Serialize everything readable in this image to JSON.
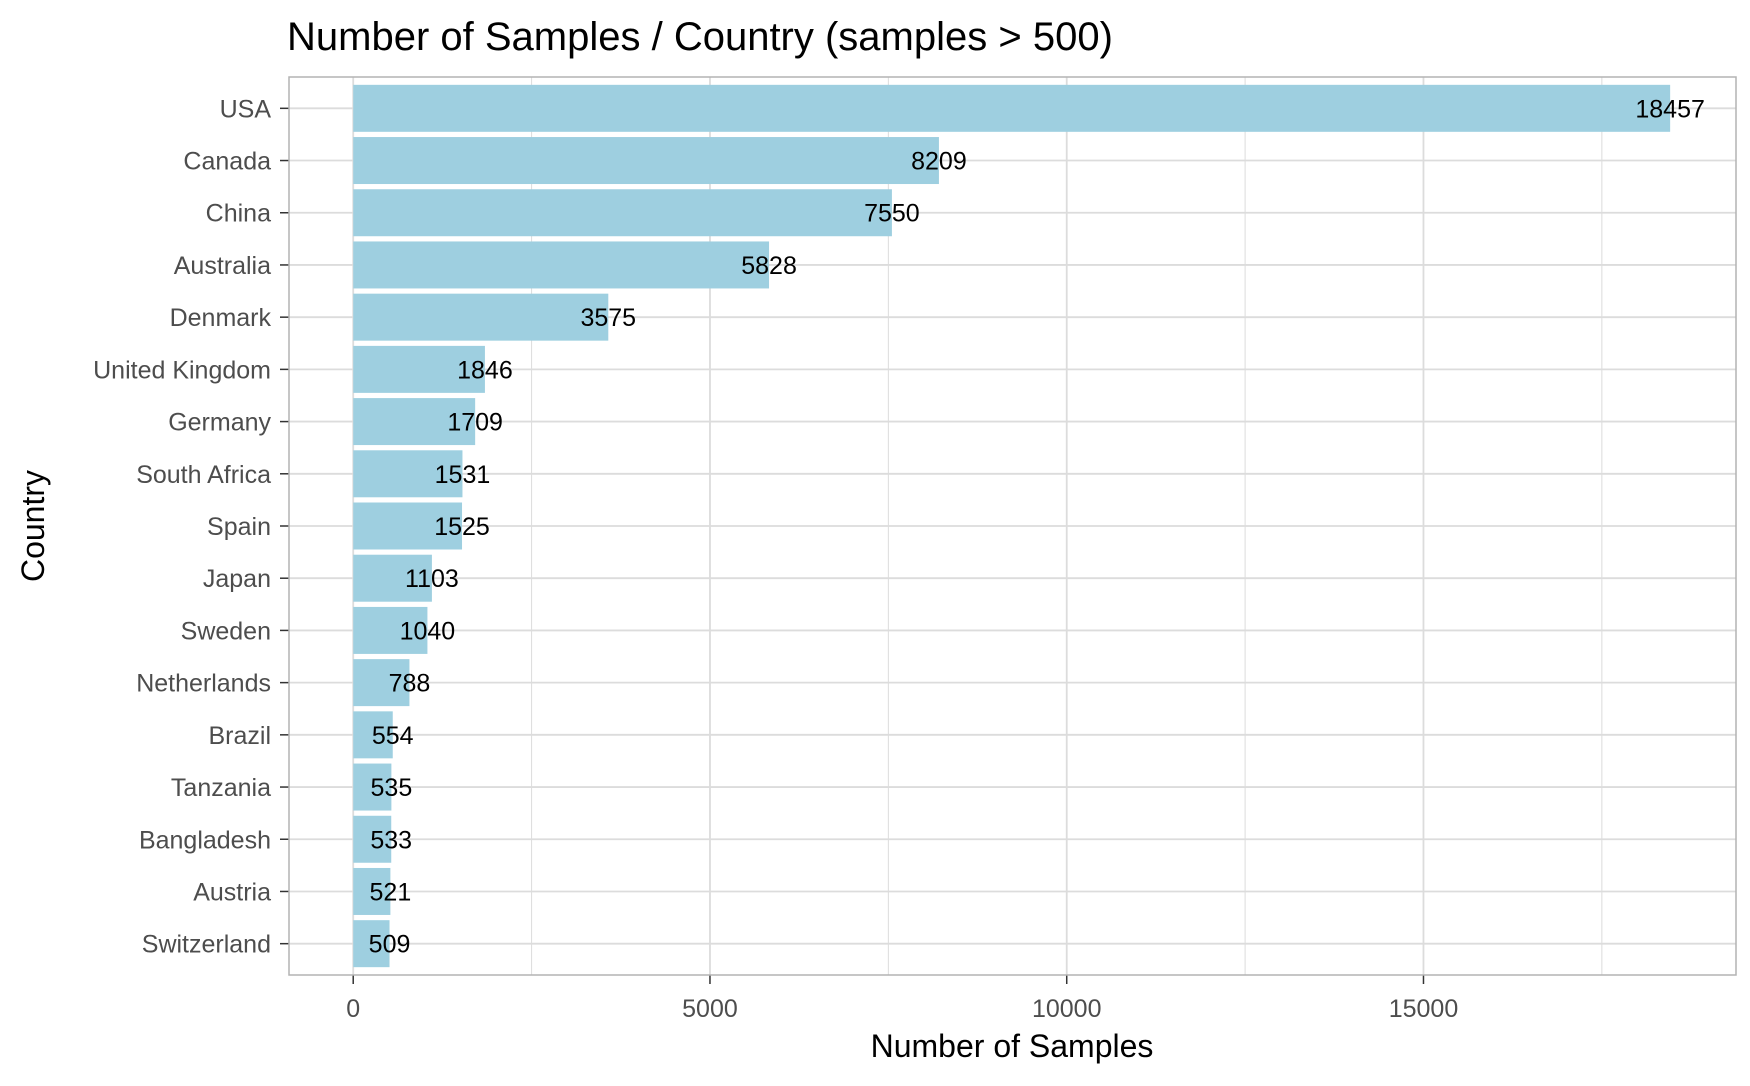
{
  "chart_data": {
    "type": "bar",
    "orientation": "horizontal",
    "title": "Number of Samples / Country (samples > 500)",
    "xlabel": "Number of Samples",
    "ylabel": "Country",
    "categories": [
      "USA",
      "Canada",
      "China",
      "Australia",
      "Denmark",
      "United Kingdom",
      "Germany",
      "South Africa",
      "Spain",
      "Japan",
      "Sweden",
      "Netherlands",
      "Brazil",
      "Tanzania",
      "Bangladesh",
      "Austria",
      "Switzerland"
    ],
    "values": [
      18457,
      8209,
      7550,
      5828,
      3575,
      1846,
      1709,
      1531,
      1525,
      1103,
      1040,
      788,
      554,
      535,
      533,
      521,
      509
    ],
    "xticks": [
      0,
      5000,
      10000,
      15000
    ],
    "xtick_labels": [
      "0",
      "5000",
      "10000",
      "15000"
    ],
    "xlim": [
      -900,
      19380
    ],
    "grid": true,
    "bar_color": "#9ecfe0",
    "grid_color": "#dcdcdc",
    "panel_border_color": "#b3b3b3"
  }
}
